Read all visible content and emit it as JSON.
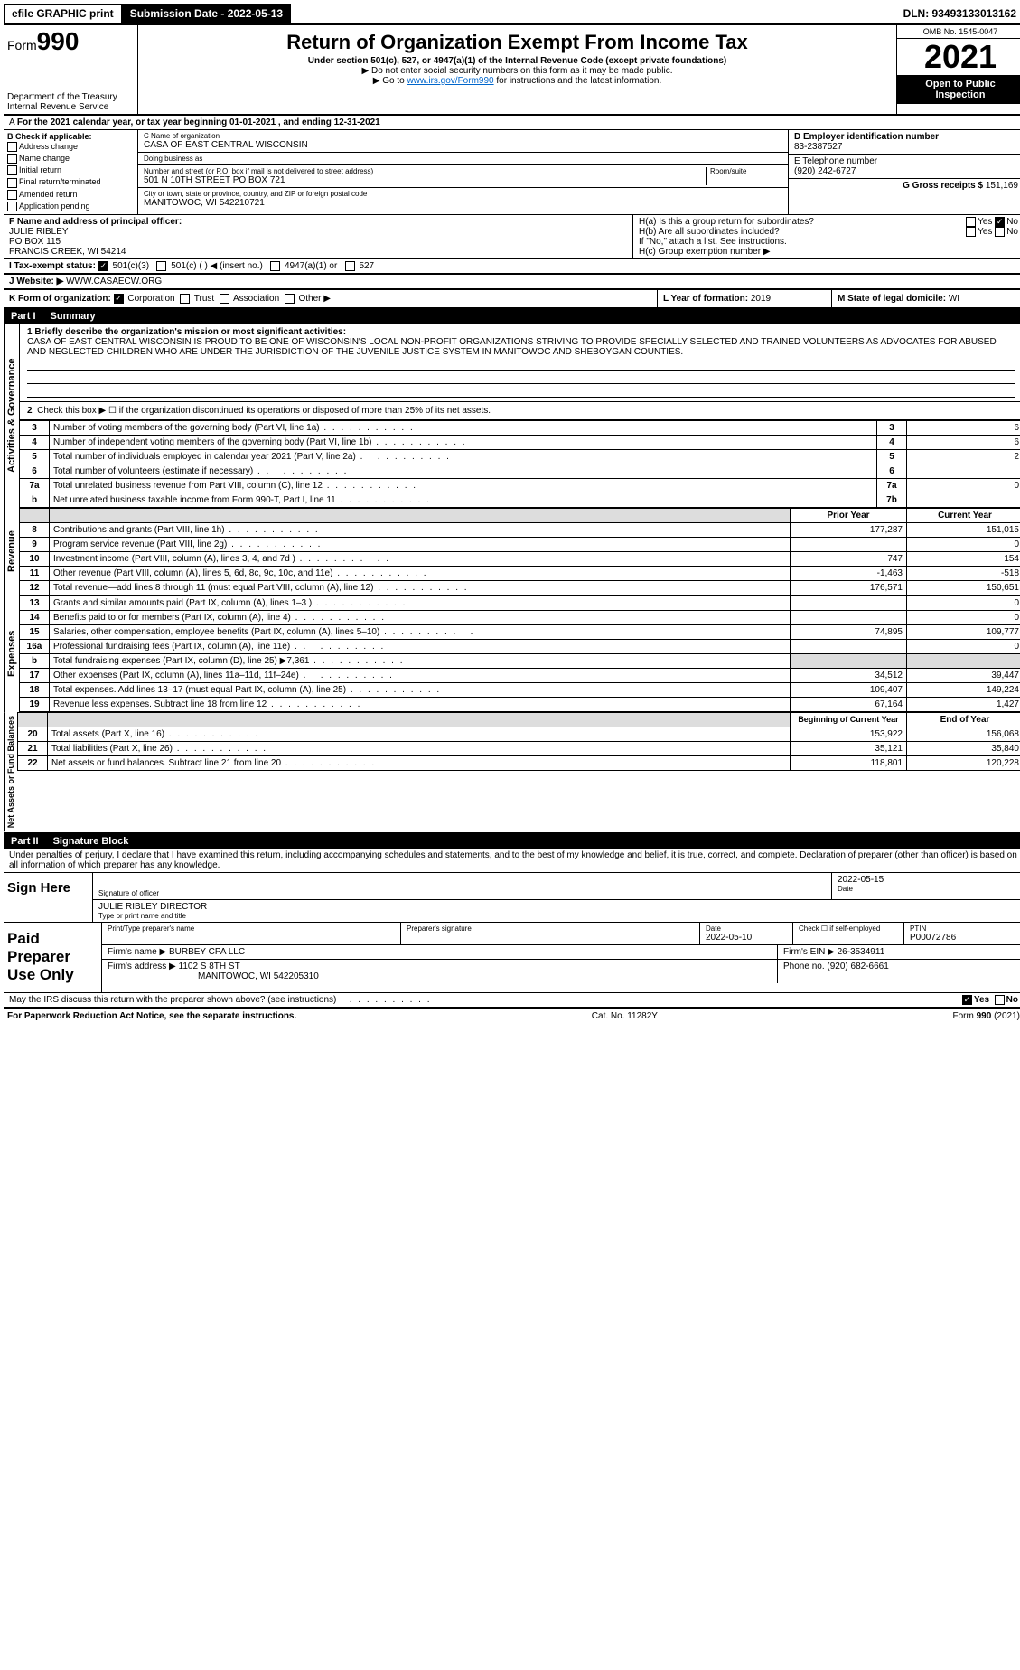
{
  "top_bar": {
    "efile": "efile GRAPHIC print",
    "submission": "Submission Date - 2022-05-13",
    "dln": "DLN: 93493133013162"
  },
  "header": {
    "form_prefix": "Form",
    "form_number": "990",
    "title": "Return of Organization Exempt From Income Tax",
    "subtitle": "Under section 501(c), 527, or 4947(a)(1) of the Internal Revenue Code (except private foundations)",
    "warn1": "▶ Do not enter social security numbers on this form as it may be made public.",
    "warn2_pre": "▶ Go to ",
    "warn2_link": "www.irs.gov/Form990",
    "warn2_post": " for instructions and the latest information.",
    "dept": "Department of the Treasury",
    "irs": "Internal Revenue Service",
    "omb": "OMB No. 1545-0047",
    "year": "2021",
    "open": "Open to Public Inspection"
  },
  "section_a": {
    "text": "For the 2021 calendar year, or tax year beginning 01-01-2021    , and ending 12-31-2021"
  },
  "section_b": {
    "label": "B Check if applicable:",
    "items": [
      "Address change",
      "Name change",
      "Initial return",
      "Final return/terminated",
      "Amended return",
      "Application pending"
    ],
    "c_label": "C Name of organization",
    "c_name": "CASA OF EAST CENTRAL WISCONSIN",
    "dba_label": "Doing business as",
    "dba": "",
    "addr_label": "Number and street (or P.O. box if mail is not delivered to street address)",
    "room_label": "Room/suite",
    "addr": "501 N 10TH STREET PO BOX 721",
    "city_label": "City or town, state or province, country, and ZIP or foreign postal code",
    "city": "MANITOWOC, WI  542210721",
    "d_label": "D Employer identification number",
    "d_val": "83-2387527",
    "e_label": "E Telephone number",
    "e_val": "(920) 242-6727",
    "g_label": "G Gross receipts $",
    "g_val": "151,169"
  },
  "section_f": {
    "label": "F  Name and address of principal officer:",
    "name": "JULIE RIBLEY",
    "po": "PO BOX 115",
    "city": "FRANCIS CREEK, WI  54214"
  },
  "section_h": {
    "ha": "H(a)  Is this a group return for subordinates?",
    "hb": "H(b)  Are all subordinates included?",
    "hb_note": "If \"No,\" attach a list. See instructions.",
    "hc": "H(c)  Group exemption number ▶",
    "yes": "Yes",
    "no": "No"
  },
  "section_i": {
    "label": "I  Tax-exempt status:",
    "opts": [
      "501(c)(3)",
      "501(c) (  ) ◀ (insert no.)",
      "4947(a)(1) or",
      "527"
    ]
  },
  "section_j": {
    "label": "J  Website: ▶",
    "val": "WWW.CASAECW.ORG"
  },
  "section_k": {
    "label": "K Form of organization:",
    "opts": [
      "Corporation",
      "Trust",
      "Association",
      "Other ▶"
    ]
  },
  "section_l": {
    "label": "L Year of formation:",
    "val": "2019"
  },
  "section_m": {
    "label": "M State of legal domicile:",
    "val": "WI"
  },
  "part1": {
    "title": "Part I",
    "sub": "Summary",
    "q1": "1  Briefly describe the organization's mission or most significant activities:",
    "mission": "CASA OF EAST CENTRAL WISCONSIN IS PROUD TO BE ONE OF WISCONSIN'S LOCAL NON-PROFIT ORGANIZATIONS STRIVING TO PROVIDE SPECIALLY SELECTED AND TRAINED VOLUNTEERS AS ADVOCATES FOR ABUSED AND NEGLECTED CHILDREN WHO ARE UNDER THE JURISDICTION OF THE JUVENILE JUSTICE SYSTEM IN MANITOWOC AND SHEBOYGAN COUNTIES.",
    "q2": "Check this box ▶ ☐  if the organization discontinued its operations or disposed of more than 25% of its net assets.",
    "rows_top": [
      {
        "n": "3",
        "t": "Number of voting members of the governing body (Part VI, line 1a)",
        "ln": "3",
        "v": "6"
      },
      {
        "n": "4",
        "t": "Number of independent voting members of the governing body (Part VI, line 1b)",
        "ln": "4",
        "v": "6"
      },
      {
        "n": "5",
        "t": "Total number of individuals employed in calendar year 2021 (Part V, line 2a)",
        "ln": "5",
        "v": "2"
      },
      {
        "n": "6",
        "t": "Total number of volunteers (estimate if necessary)",
        "ln": "6",
        "v": ""
      },
      {
        "n": "7a",
        "t": "Total unrelated business revenue from Part VIII, column (C), line 12",
        "ln": "7a",
        "v": "0"
      },
      {
        "n": "b",
        "t": "Net unrelated business taxable income from Form 990-T, Part I, line 11",
        "ln": "7b",
        "v": ""
      }
    ],
    "prior_h": "Prior Year",
    "curr_h": "Current Year",
    "revenue": [
      {
        "n": "8",
        "t": "Contributions and grants (Part VIII, line 1h)",
        "p": "177,287",
        "c": "151,015"
      },
      {
        "n": "9",
        "t": "Program service revenue (Part VIII, line 2g)",
        "p": "",
        "c": "0"
      },
      {
        "n": "10",
        "t": "Investment income (Part VIII, column (A), lines 3, 4, and 7d )",
        "p": "747",
        "c": "154"
      },
      {
        "n": "11",
        "t": "Other revenue (Part VIII, column (A), lines 5, 6d, 8c, 9c, 10c, and 11e)",
        "p": "-1,463",
        "c": "-518"
      },
      {
        "n": "12",
        "t": "Total revenue—add lines 8 through 11 (must equal Part VIII, column (A), line 12)",
        "p": "176,571",
        "c": "150,651"
      }
    ],
    "expenses": [
      {
        "n": "13",
        "t": "Grants and similar amounts paid (Part IX, column (A), lines 1–3 )",
        "p": "",
        "c": "0"
      },
      {
        "n": "14",
        "t": "Benefits paid to or for members (Part IX, column (A), line 4)",
        "p": "",
        "c": "0"
      },
      {
        "n": "15",
        "t": "Salaries, other compensation, employee benefits (Part IX, column (A), lines 5–10)",
        "p": "74,895",
        "c": "109,777"
      },
      {
        "n": "16a",
        "t": "Professional fundraising fees (Part IX, column (A), line 11e)",
        "p": "",
        "c": "0"
      },
      {
        "n": "b",
        "t": "Total fundraising expenses (Part IX, column (D), line 25) ▶7,361",
        "p": "GRAY",
        "c": "GRAY"
      },
      {
        "n": "17",
        "t": "Other expenses (Part IX, column (A), lines 11a–11d, 11f–24e)",
        "p": "34,512",
        "c": "39,447"
      },
      {
        "n": "18",
        "t": "Total expenses. Add lines 13–17 (must equal Part IX, column (A), line 25)",
        "p": "109,407",
        "c": "149,224"
      },
      {
        "n": "19",
        "t": "Revenue less expenses. Subtract line 18 from line 12",
        "p": "67,164",
        "c": "1,427"
      }
    ],
    "bal_h1": "Beginning of Current Year",
    "bal_h2": "End of Year",
    "balances": [
      {
        "n": "20",
        "t": "Total assets (Part X, line 16)",
        "p": "153,922",
        "c": "156,068"
      },
      {
        "n": "21",
        "t": "Total liabilities (Part X, line 26)",
        "p": "35,121",
        "c": "35,840"
      },
      {
        "n": "22",
        "t": "Net assets or fund balances. Subtract line 21 from line 20",
        "p": "118,801",
        "c": "120,228"
      }
    ],
    "vert_gov": "Activities & Governance",
    "vert_rev": "Revenue",
    "vert_exp": "Expenses",
    "vert_net": "Net Assets or Fund Balances"
  },
  "part2": {
    "title": "Part II",
    "sub": "Signature Block",
    "penalty": "Under penalties of perjury, I declare that I have examined this return, including accompanying schedules and statements, and to the best of my knowledge and belief, it is true, correct, and complete. Declaration of preparer (other than officer) is based on all information of which preparer has any knowledge.",
    "sign_here": "Sign Here",
    "sig_officer": "Signature of officer",
    "sig_date": "2022-05-15",
    "date_lbl": "Date",
    "name_title": "JULIE RIBLEY DIRECTOR",
    "name_lbl": "Type or print name and title",
    "paid": "Paid Preparer Use Only",
    "prep_name_lbl": "Print/Type preparer's name",
    "prep_sig_lbl": "Preparer's signature",
    "prep_date": "2022-05-10",
    "check_self": "Check ☐ if self-employed",
    "ptin_lbl": "PTIN",
    "ptin": "P00072786",
    "firm_name_lbl": "Firm's name    ▶",
    "firm_name": "BURBEY CPA LLC",
    "firm_ein_lbl": "Firm's EIN ▶",
    "firm_ein": "26-3534911",
    "firm_addr_lbl": "Firm's address ▶",
    "firm_addr1": "1102 S 8TH ST",
    "firm_addr2": "MANITOWOC, WI  542205310",
    "phone_lbl": "Phone no.",
    "phone": "(920) 682-6661",
    "may_irs": "May the IRS discuss this return with the preparer shown above? (see instructions)"
  },
  "footer": {
    "left": "For Paperwork Reduction Act Notice, see the separate instructions.",
    "mid": "Cat. No. 11282Y",
    "right": "Form 990 (2021)"
  }
}
